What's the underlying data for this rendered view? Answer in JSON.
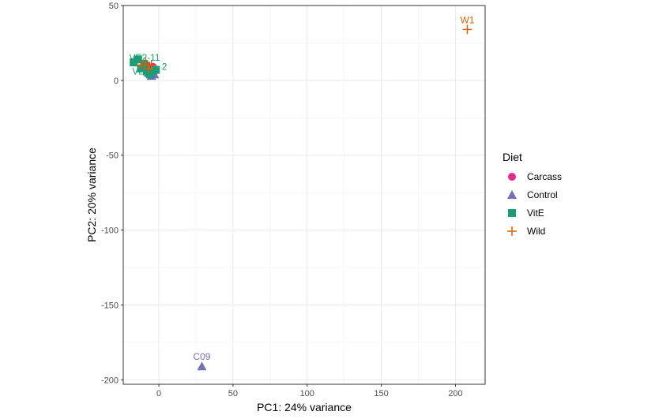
{
  "chart_data": {
    "type": "scatter",
    "title": "",
    "xlabel": "PC1: 24% variance",
    "ylabel": "PC2: 20% variance",
    "xlim": [
      -24,
      220
    ],
    "ylim": [
      -203,
      50
    ],
    "x_ticks": [
      0,
      50,
      100,
      150,
      200
    ],
    "y_ticks": [
      50,
      0,
      -50,
      -100,
      -150,
      -200
    ],
    "grid": true,
    "legend": {
      "title": "Diet",
      "position": "right",
      "entries": [
        {
          "label": "Carcass",
          "color": "#e7298a",
          "shape": "circle"
        },
        {
          "label": "Control",
          "color": "#7570b3",
          "shape": "triangle"
        },
        {
          "label": "VitE",
          "color": "#1b9e77",
          "shape": "square"
        },
        {
          "label": "Wild",
          "color": "#d95f02",
          "shape": "cross"
        }
      ]
    },
    "series": [
      {
        "name": "Carcass",
        "color": "#e7298a",
        "shape": "circle",
        "points": [
          {
            "x": -6,
            "y": 7
          },
          {
            "x": -4,
            "y": 9
          },
          {
            "x": -8,
            "y": 10
          },
          {
            "x": -3,
            "y": 6
          }
        ]
      },
      {
        "name": "Control",
        "color": "#7570b3",
        "shape": "triangle",
        "points": [
          {
            "x": -3,
            "y": 4
          },
          {
            "x": -7,
            "y": 5
          },
          {
            "x": -5,
            "y": 3
          },
          {
            "x": 29,
            "y": -191,
            "label": "C09"
          }
        ]
      },
      {
        "name": "VitE",
        "color": "#1b9e77",
        "shape": "square",
        "points": [
          {
            "x": -10,
            "y": 11
          },
          {
            "x": -14,
            "y": 14
          },
          {
            "x": -17,
            "y": 12
          },
          {
            "x": -8,
            "y": 6
          },
          {
            "x": -6,
            "y": 4
          },
          {
            "x": -2,
            "y": 7
          },
          {
            "x": -12,
            "y": 8
          }
        ]
      },
      {
        "name": "Wild",
        "color": "#d95f02",
        "shape": "cross",
        "points": [
          {
            "x": -9,
            "y": 12
          },
          {
            "x": -12,
            "y": 10
          },
          {
            "x": -7,
            "y": 8
          },
          {
            "x": -5,
            "y": 10
          },
          {
            "x": 208,
            "y": 34,
            "label": "W1"
          }
        ]
      }
    ],
    "overlapping_labels": [
      {
        "text": "VE2-11",
        "x": -20,
        "y": 13,
        "color": "#1b9e77"
      },
      {
        "text": "2",
        "x": 2,
        "y": 7,
        "color": "#1b9e77"
      },
      {
        "text": "VE",
        "x": -18,
        "y": 4,
        "color": "#1b9e77"
      }
    ]
  }
}
